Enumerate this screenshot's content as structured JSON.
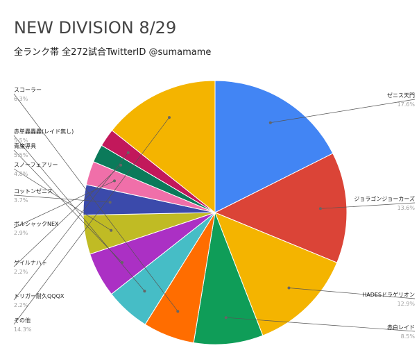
{
  "chart_data": {
    "type": "pie",
    "title": "NEW DIVISION 8/29",
    "subtitle": "全ランク帯 全272試合TwitterID @sumamame",
    "slices": [
      {
        "label": "ゼニス天門",
        "value": 17.6,
        "display": "17.6%",
        "color": "#4285f4"
      },
      {
        "label": "ジョラゴンジョーカーズ",
        "value": 13.6,
        "display": "13.6%",
        "color": "#db4437"
      },
      {
        "label": "HADESドラゲリオン",
        "value": 12.9,
        "display": "12.9%",
        "color": "#f4b400"
      },
      {
        "label": "赤白レイド",
        "value": 8.5,
        "display": "8.5%",
        "color": "#0f9d58"
      },
      {
        "label": "スコーラー",
        "value": 6.3,
        "display": "6.3%",
        "color": "#ff6d00"
      },
      {
        "label": "赤単轟轟轟(レイド無し)",
        "value": 5.5,
        "display": "5.5%",
        "color": "#46bdc6"
      },
      {
        "label": "青魔導具",
        "value": 5.5,
        "display": "5.5%",
        "color": "#ab30c4"
      },
      {
        "label": "スノーフェアリー",
        "value": 4.8,
        "display": "4.8%",
        "color": "#c0bb24"
      },
      {
        "label": "コットンゼニス",
        "value": 3.7,
        "display": "3.7%",
        "color": "#3b4aab"
      },
      {
        "label": "ボルシャックNEX",
        "value": 2.9,
        "display": "2.9%",
        "color": "#f06fa9"
      },
      {
        "label": "ゲイルナハト",
        "value": 2.2,
        "display": "2.2%",
        "color": "#0b7a5a"
      },
      {
        "label": "トリガー耐久QQQX",
        "value": 2.2,
        "display": "2.2%",
        "color": "#c2185b"
      },
      {
        "label": "その他",
        "value": 14.3,
        "display": "14.3%",
        "color": "#f4b400"
      }
    ]
  }
}
